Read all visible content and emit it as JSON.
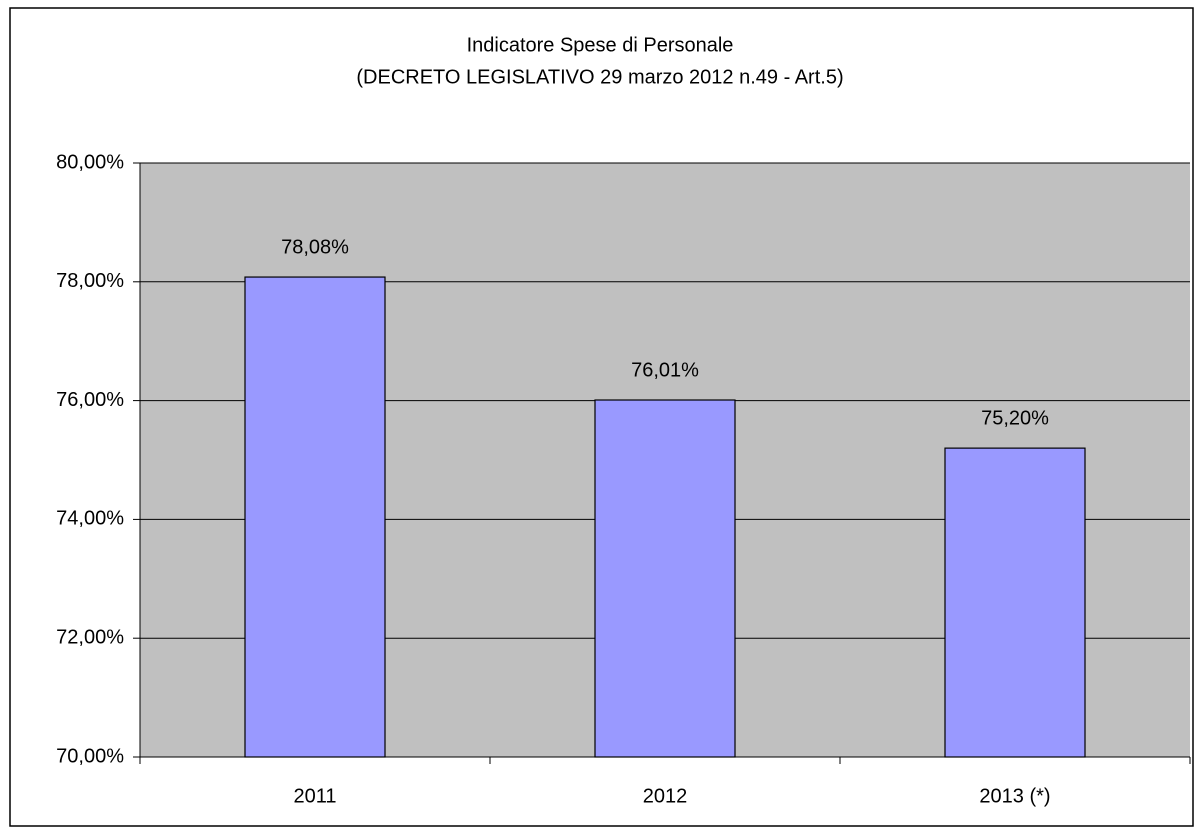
{
  "chart_data": {
    "type": "bar",
    "title": "Indicatore Spese di Personale",
    "subtitle": "(DECRETO LEGISLATIVO 29 marzo 2012 n.49 - Art.5)",
    "categories": [
      "2011",
      "2012",
      "2013 (*)"
    ],
    "values": [
      78.08,
      76.01,
      75.2
    ],
    "value_labels": [
      "78,08%",
      "76,01%",
      "75,20%"
    ],
    "color": "#9999ff",
    "ylim": [
      70,
      80
    ],
    "yticks": [
      {
        "value": 70,
        "label": "70,00%"
      },
      {
        "value": 72,
        "label": "72,00%"
      },
      {
        "value": 74,
        "label": "74,00%"
      },
      {
        "value": 76,
        "label": "76,00%"
      },
      {
        "value": 78,
        "label": "78,00%"
      },
      {
        "value": 80,
        "label": "80,00%"
      }
    ],
    "grid": true
  }
}
